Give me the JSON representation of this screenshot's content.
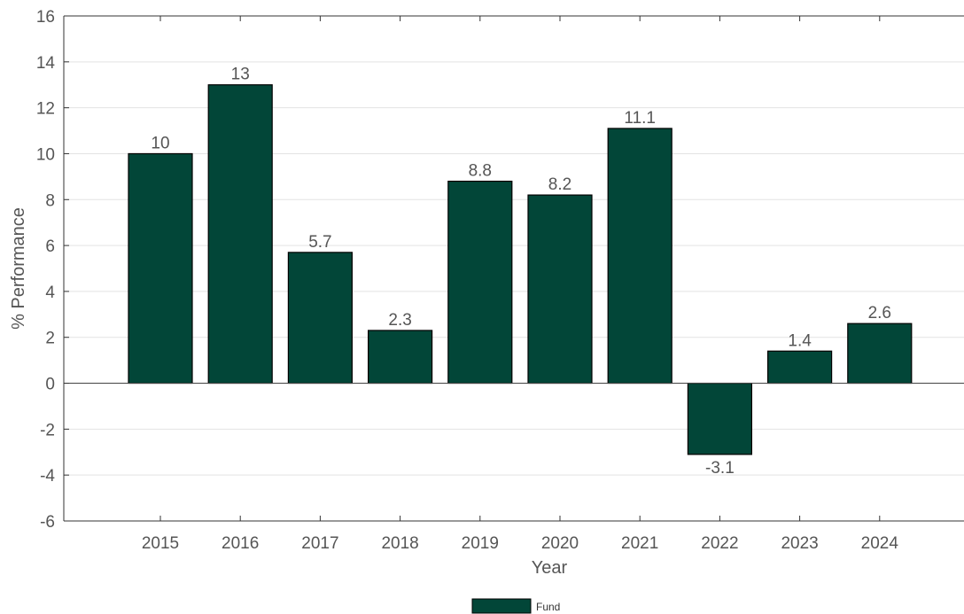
{
  "chart_data": {
    "type": "bar",
    "categories": [
      "2015",
      "2016",
      "2017",
      "2018",
      "2019",
      "2020",
      "2021",
      "2022",
      "2023",
      "2024"
    ],
    "series": [
      {
        "name": "Fund",
        "values": [
          10,
          13,
          5.7,
          2.3,
          8.8,
          8.2,
          11.1,
          -3.1,
          1.4,
          2.6
        ],
        "color": "#024638"
      }
    ],
    "data_labels": [
      "10",
      "13",
      "5.7",
      "2.3",
      "8.8",
      "8.2",
      "11.1",
      "-3.1",
      "1.4",
      "2.6"
    ],
    "xlabel": "Year",
    "ylabel": "% Performance",
    "ylim": [
      -6,
      16
    ],
    "yticks": [
      -6,
      -4,
      -2,
      0,
      2,
      4,
      6,
      8,
      10,
      12,
      14,
      16
    ],
    "grid": true,
    "legend_position": "bottom-center"
  }
}
